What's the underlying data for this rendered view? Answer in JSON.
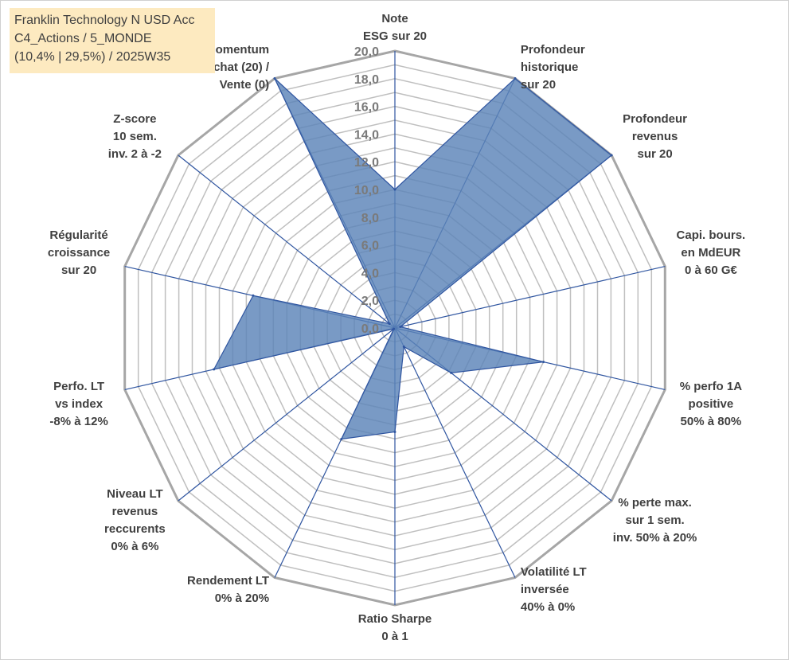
{
  "info_box": {
    "line1": "Franklin Technology N USD Acc",
    "line2": "C4_Actions / 5_MONDE",
    "line3": "(10,4% | 29,5%) / 2025W35"
  },
  "chart_data": {
    "type": "radar",
    "rlim": [
      0,
      20
    ],
    "tick_labels": [
      "0,0",
      "2,0",
      "4,0",
      "6,0",
      "8,0",
      "10,0",
      "12,0",
      "14,0",
      "16,0",
      "18,0",
      "20,0"
    ],
    "grid": true,
    "colors": {
      "fill": "#5b84b8",
      "edge": "#2f55a0",
      "spoke": "#2f55a0",
      "grid": "#bfbfbf",
      "outer_ring": "#a6a6a6"
    },
    "axes": [
      {
        "label": [
          "Note",
          "ESG sur 20"
        ],
        "value": 10.0
      },
      {
        "label": [
          "Profondeur",
          "historique",
          "sur 20"
        ],
        "value": 20.0
      },
      {
        "label": [
          "Profondeur",
          "revenus",
          "sur 20"
        ],
        "value": 20.0
      },
      {
        "label": [
          "Capi. bours.",
          "en MdEUR",
          "0 à 60 G€"
        ],
        "value": 0.4
      },
      {
        "label": [
          "% perfo 1A",
          "positive",
          "50% à 80%"
        ],
        "value": 11.0
      },
      {
        "label": [
          "% perte max.",
          "sur 1 sem.",
          "inv. 50% à 20%"
        ],
        "value": 5.2
      },
      {
        "label": [
          "Volatilité LT",
          "inversée",
          "40% à 0%"
        ],
        "value": 1.5
      },
      {
        "label": [
          "Ratio Sharpe",
          "0 à 1"
        ],
        "value": 7.5
      },
      {
        "label": [
          "Rendement LT",
          "0% à 20%"
        ],
        "value": 8.9
      },
      {
        "label": [
          "Niveau LT",
          "revenus",
          "reccurents",
          "0% à 6%"
        ],
        "value": 0.1
      },
      {
        "label": [
          "Perfo. LT",
          "vs index",
          "-8% à 12%"
        ],
        "value": 13.4
      },
      {
        "label": [
          "Régularité",
          "croissance",
          "sur 20"
        ],
        "value": 10.5
      },
      {
        "label": [
          "Z-score",
          "10 sem.",
          "inv. 2 à -2"
        ],
        "value": 0.5
      },
      {
        "label": [
          "Momentum",
          "Achat (20) /",
          "Vente (0)"
        ],
        "value": 20.0
      }
    ]
  }
}
